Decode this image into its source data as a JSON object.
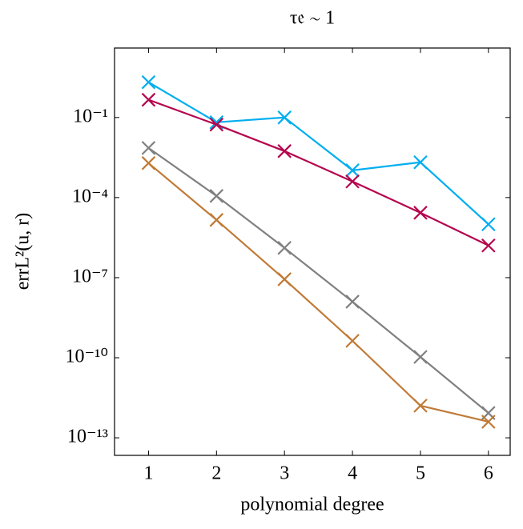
{
  "chart_data": {
    "type": "line",
    "title": "τ𝔢 ∼ 1",
    "xlabel": "polynomial degree",
    "ylabel": "errL²(u, r)",
    "x": [
      1,
      2,
      3,
      4,
      5,
      6
    ],
    "series": [
      {
        "color": "#00aeef",
        "values": [
          2.1,
          0.066,
          0.1,
          0.00105,
          0.0021,
          1e-05
        ]
      },
      {
        "color": "#b5054e",
        "values": [
          0.46,
          0.054,
          0.0055,
          0.0004,
          2.7e-05,
          1.6e-06
        ]
      },
      {
        "color": "#808080",
        "values": [
          0.0072,
          0.000115,
          1.3e-06,
          1.26e-08,
          1.07e-10,
          8.5e-13
        ]
      },
      {
        "color": "#c07a36",
        "values": [
          0.00195,
          1.45e-05,
          8.7e-08,
          4.3e-10,
          1.6e-12,
          4e-13
        ]
      }
    ],
    "xlim": [
      0.5,
      6.32
    ],
    "xticks": [
      1,
      2,
      3,
      4,
      5,
      6
    ],
    "ylim": [
      2.2e-14,
      40
    ],
    "log_y": true,
    "yticks": [
      {
        "value": 0.1,
        "label": "10⁻¹"
      },
      {
        "value": 0.0001,
        "label": "10⁻⁴"
      },
      {
        "value": 1e-07,
        "label": "10⁻⁷"
      },
      {
        "value": 1e-10,
        "label": "10⁻¹⁰"
      },
      {
        "value": 1e-13,
        "label": "10⁻¹³"
      }
    ],
    "grid": false
  }
}
